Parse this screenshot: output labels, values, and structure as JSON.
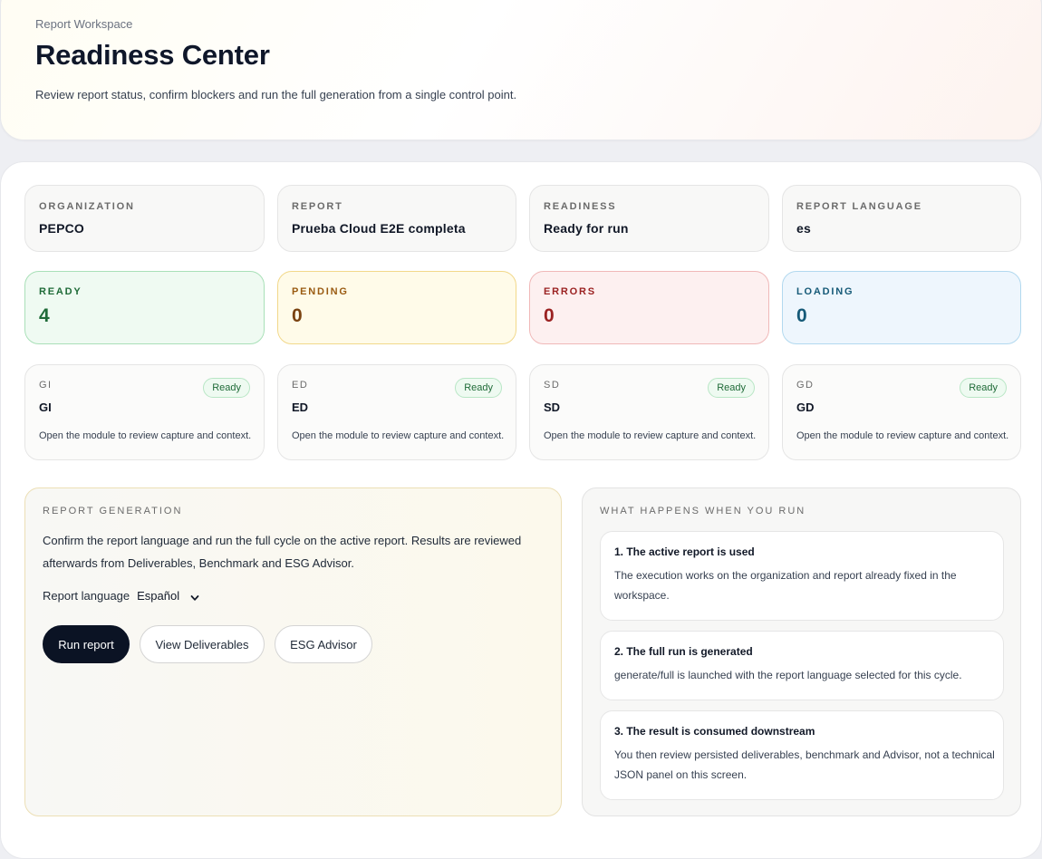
{
  "header": {
    "eyebrow": "Report Workspace",
    "title": "Readiness Center",
    "subtitle": "Review report status, confirm blockers and run the full generation from a single control point."
  },
  "info_cards": [
    {
      "label": "ORGANIZATION",
      "value": "PEPCO"
    },
    {
      "label": "REPORT",
      "value": "Prueba Cloud E2E completa"
    },
    {
      "label": "READINESS",
      "value": "Ready for run"
    },
    {
      "label": "REPORT LANGUAGE",
      "value": "es"
    }
  ],
  "stats": [
    {
      "label": "READY",
      "value": "4",
      "color": "#1f6b38"
    },
    {
      "label": "PENDING",
      "value": "0",
      "color": "#9a5b12"
    },
    {
      "label": "ERRORS",
      "value": "0",
      "color": "#9b2222"
    },
    {
      "label": "LOADING",
      "value": "0",
      "color": "#165a78"
    }
  ],
  "modules": [
    {
      "code": "GI",
      "name": "GI",
      "status": "Ready",
      "description": "Open the module to review capture and context."
    },
    {
      "code": "ED",
      "name": "ED",
      "status": "Ready",
      "description": "Open the module to review capture and context."
    },
    {
      "code": "SD",
      "name": "SD",
      "status": "Ready",
      "description": "Open the module to review capture and context."
    },
    {
      "code": "GD",
      "name": "GD",
      "status": "Ready",
      "description": "Open the module to review capture and context."
    }
  ],
  "generation": {
    "label": "REPORT GENERATION",
    "description": "Confirm the report language and run the full cycle on the active report. Results are reviewed afterwards from Deliverables, Benchmark and ESG Advisor.",
    "language_label": "Report language",
    "language_value": "Español",
    "buttons": {
      "run": "Run report",
      "deliverables": "View Deliverables",
      "advisor": "ESG Advisor"
    }
  },
  "run_info": {
    "label": "WHAT HAPPENS WHEN YOU RUN",
    "steps": [
      {
        "title": "1. The active report is used",
        "description": "The execution works on the organization and report already fixed in the workspace."
      },
      {
        "title": "2. The full run is generated",
        "description": "generate/full is launched with the report language selected for this cycle."
      },
      {
        "title": "3. The result is consumed downstream",
        "description": "You then review persisted deliverables, benchmark and Advisor, not a technical JSON panel on this screen."
      }
    ]
  },
  "icons": {
    "language_dropdown": "chevron-down-icon"
  },
  "colors": {
    "primary_button": "#0b1324",
    "ready_badge": "#1f6b38"
  }
}
